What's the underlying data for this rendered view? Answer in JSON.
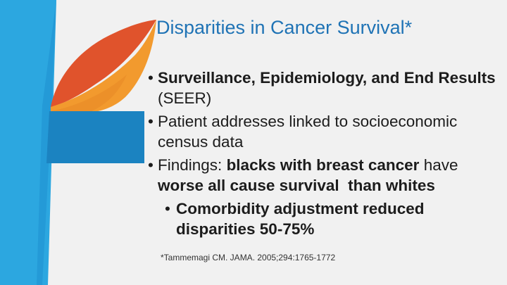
{
  "slide": {
    "title": "Disparities in Cancer Survival*",
    "bullets": [
      {
        "parts": [
          {
            "text": "Surveillance, Epidemiology, and End Results",
            "bold": true
          },
          {
            "text": " (SEER)",
            "bold": false
          }
        ]
      },
      {
        "parts": [
          {
            "text": "Patient addresses linked to socioeconomic census data",
            "bold": false
          }
        ]
      },
      {
        "parts": [
          {
            "text": "Findings: ",
            "bold": false
          },
          {
            "text": "blacks with breast cancer",
            "bold": true
          },
          {
            "text": " have ",
            "bold": false
          },
          {
            "text": "worse all cause survival  than whites",
            "bold": true
          }
        ]
      }
    ],
    "sub_bullet": "Comorbidity adjustment reduced disparities 50-75%",
    "citation": "*Tammemagi CM. JAMA. 2005;294:1765-1772"
  },
  "colors": {
    "background": "#f1f1f1",
    "title": "#1f73b5",
    "blue_light": "#2ca7e0",
    "blue_dark": "#1b83c1",
    "orange": "#f29a2e",
    "orange_red": "#e0532c"
  },
  "decoration": {
    "logo_shapes": [
      "blue-panel",
      "orange-leaf",
      "red-leaf",
      "blue-block"
    ]
  }
}
